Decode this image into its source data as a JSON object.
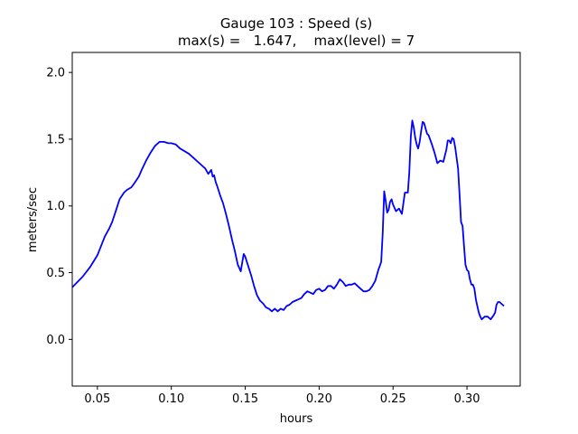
{
  "chart_data": {
    "type": "line",
    "title": "Gauge 103 : Speed (s)",
    "subtitle": "max(s) =   1.647,    max(level) = 7",
    "xlabel": "hours",
    "ylabel": "meters/sec",
    "xlim": [
      0.033,
      0.336
    ],
    "ylim": [
      -0.35,
      2.15
    ],
    "xticks": [
      0.05,
      0.1,
      0.15,
      0.2,
      0.25,
      0.3
    ],
    "xtick_labels": [
      "0.05",
      "0.10",
      "0.15",
      "0.20",
      "0.25",
      "0.30"
    ],
    "yticks": [
      0.0,
      0.5,
      1.0,
      1.5,
      2.0
    ],
    "ytick_labels": [
      "0.0",
      "0.5",
      "1.0",
      "1.5",
      "2.0"
    ],
    "grid": false,
    "line_color": "#0000ff",
    "series": [
      {
        "x": [
          0.033,
          0.04,
          0.045,
          0.05,
          0.055,
          0.058,
          0.06,
          0.063,
          0.065,
          0.068,
          0.07,
          0.073,
          0.075,
          0.078,
          0.08,
          0.083,
          0.086,
          0.089,
          0.092,
          0.095,
          0.098,
          0.1,
          0.103,
          0.106,
          0.109,
          0.112,
          0.115,
          0.118,
          0.121,
          0.123,
          0.125,
          0.127,
          0.128,
          0.129,
          0.13,
          0.131,
          0.133,
          0.135,
          0.137,
          0.139,
          0.141,
          0.143,
          0.145,
          0.147,
          0.148,
          0.149,
          0.15,
          0.152,
          0.154,
          0.156,
          0.158,
          0.16,
          0.162,
          0.164,
          0.166,
          0.168,
          0.17,
          0.172,
          0.174,
          0.176,
          0.178,
          0.18,
          0.182,
          0.184,
          0.186,
          0.188,
          0.19,
          0.192,
          0.194,
          0.196,
          0.198,
          0.2,
          0.202,
          0.204,
          0.206,
          0.208,
          0.21,
          0.212,
          0.214,
          0.216,
          0.218,
          0.22,
          0.222,
          0.224,
          0.226,
          0.228,
          0.23,
          0.232,
          0.234,
          0.236,
          0.238,
          0.24,
          0.241,
          0.242,
          0.243,
          0.244,
          0.245,
          0.246,
          0.247,
          0.248,
          0.249,
          0.25,
          0.252,
          0.254,
          0.256,
          0.258,
          0.26,
          0.261,
          0.262,
          0.263,
          0.264,
          0.265,
          0.266,
          0.267,
          0.268,
          0.269,
          0.27,
          0.271,
          0.272,
          0.273,
          0.274,
          0.276,
          0.278,
          0.279,
          0.28,
          0.282,
          0.284,
          0.286,
          0.287,
          0.288,
          0.289,
          0.29,
          0.291,
          0.292,
          0.294,
          0.295,
          0.296,
          0.297,
          0.298,
          0.299,
          0.3,
          0.301,
          0.302,
          0.303,
          0.304,
          0.305,
          0.306,
          0.307,
          0.308,
          0.309,
          0.31,
          0.311,
          0.312,
          0.314,
          0.316,
          0.318,
          0.319,
          0.32,
          0.321,
          0.322,
          0.323,
          0.324,
          0.325
        ],
        "y": [
          0.39,
          0.47,
          0.54,
          0.63,
          0.77,
          0.83,
          0.88,
          0.98,
          1.05,
          1.1,
          1.12,
          1.14,
          1.17,
          1.22,
          1.27,
          1.34,
          1.4,
          1.45,
          1.48,
          1.48,
          1.47,
          1.47,
          1.46,
          1.43,
          1.41,
          1.39,
          1.36,
          1.33,
          1.3,
          1.28,
          1.24,
          1.27,
          1.22,
          1.23,
          1.18,
          1.15,
          1.08,
          1.02,
          0.94,
          0.85,
          0.75,
          0.66,
          0.56,
          0.51,
          0.58,
          0.64,
          0.62,
          0.55,
          0.48,
          0.4,
          0.33,
          0.29,
          0.27,
          0.24,
          0.23,
          0.21,
          0.23,
          0.21,
          0.23,
          0.22,
          0.25,
          0.26,
          0.28,
          0.29,
          0.3,
          0.31,
          0.34,
          0.36,
          0.35,
          0.34,
          0.37,
          0.38,
          0.36,
          0.37,
          0.4,
          0.4,
          0.38,
          0.41,
          0.45,
          0.43,
          0.4,
          0.41,
          0.41,
          0.42,
          0.4,
          0.38,
          0.36,
          0.36,
          0.37,
          0.4,
          0.44,
          0.52,
          0.55,
          0.58,
          0.8,
          1.11,
          1.04,
          0.95,
          0.97,
          1.03,
          1.05,
          1.01,
          0.96,
          0.98,
          0.94,
          1.1,
          1.1,
          1.25,
          1.52,
          1.64,
          1.59,
          1.51,
          1.46,
          1.43,
          1.48,
          1.56,
          1.63,
          1.62,
          1.58,
          1.54,
          1.53,
          1.47,
          1.4,
          1.36,
          1.32,
          1.34,
          1.33,
          1.42,
          1.49,
          1.49,
          1.47,
          1.51,
          1.5,
          1.44,
          1.28,
          1.08,
          0.88,
          0.85,
          0.7,
          0.56,
          0.52,
          0.51,
          0.45,
          0.41,
          0.41,
          0.38,
          0.3,
          0.25,
          0.2,
          0.17,
          0.15,
          0.16,
          0.17,
          0.17,
          0.15,
          0.18,
          0.2,
          0.26,
          0.28,
          0.28,
          0.27,
          0.26,
          0.25
        ]
      }
    ]
  }
}
